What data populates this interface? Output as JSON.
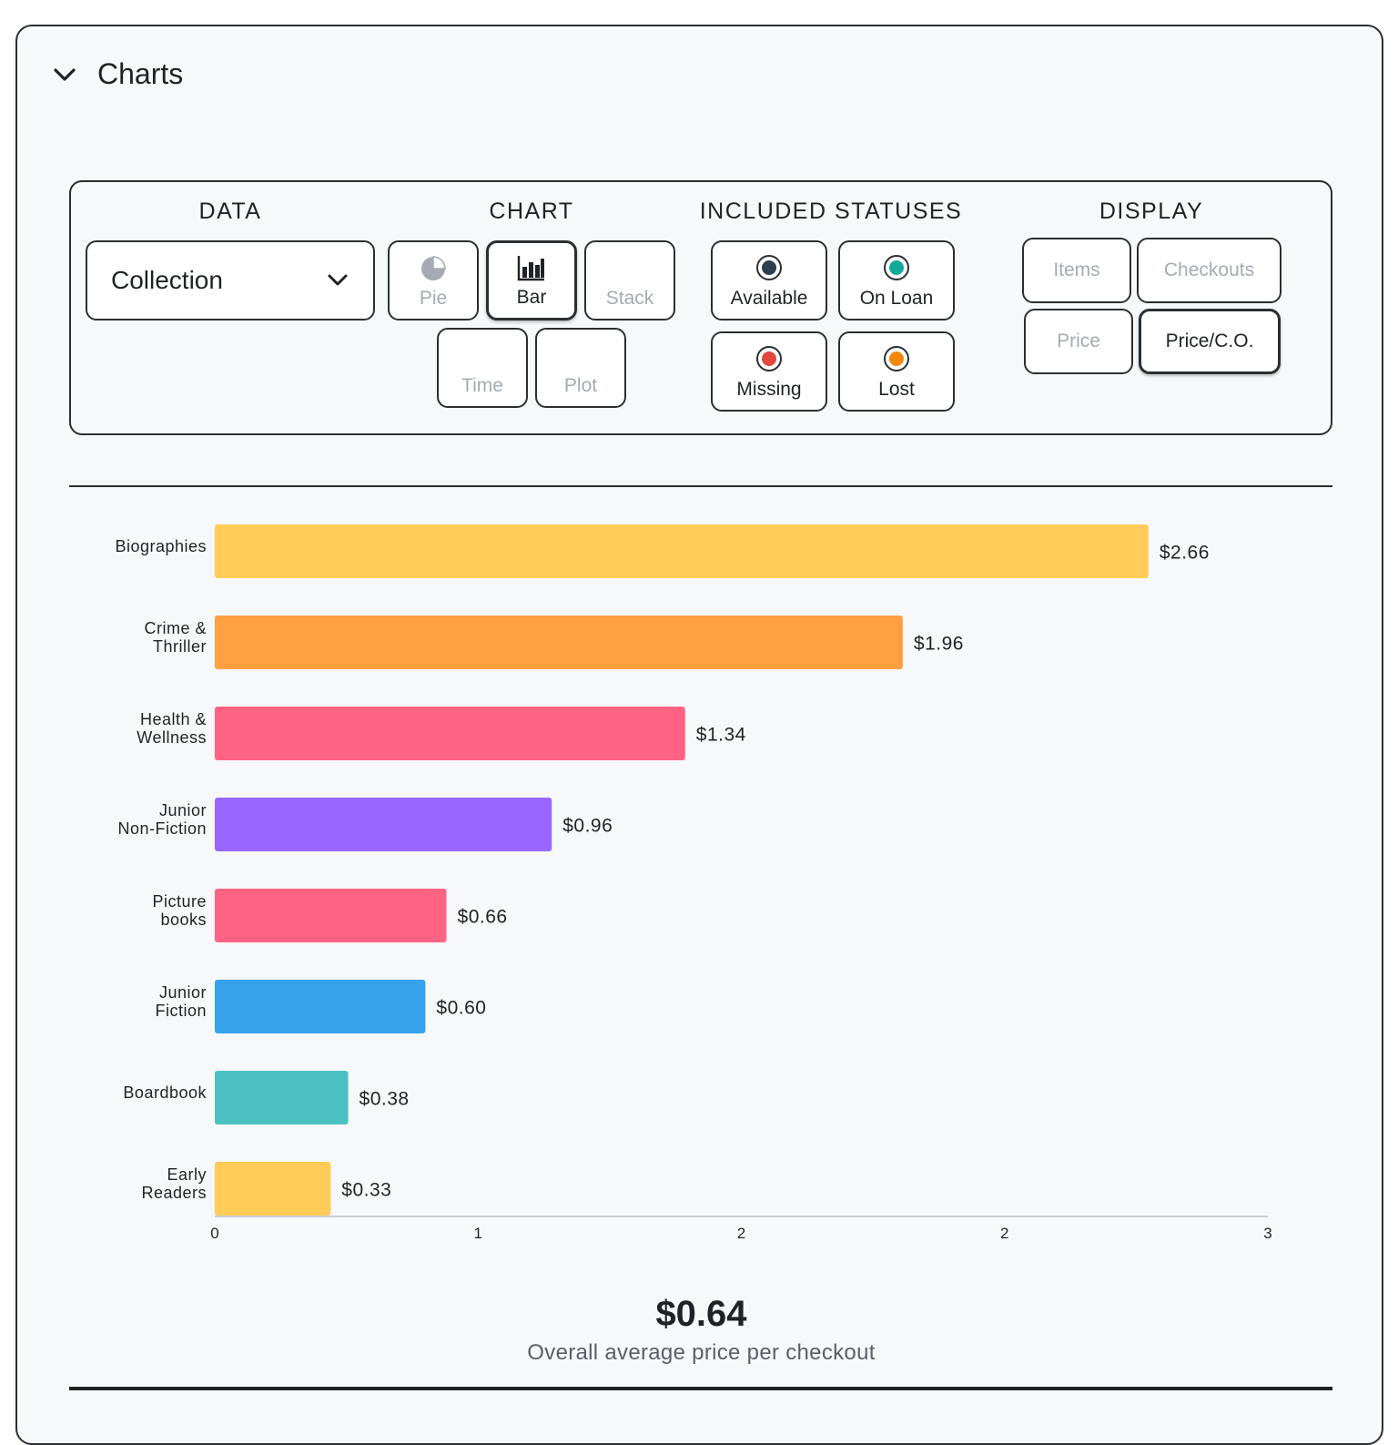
{
  "header": {
    "title": "Charts",
    "icon": "chevron-down-icon"
  },
  "controls": {
    "data": {
      "label": "DATA",
      "selected": "Collection"
    },
    "chart": {
      "label": "CHART",
      "options": [
        {
          "label": "Pie",
          "icon": "pie-chart-icon",
          "state": "disabled"
        },
        {
          "label": "Bar",
          "icon": "bar-chart-icon",
          "state": "selected"
        },
        {
          "label": "Stack",
          "icon": "",
          "state": "disabled"
        },
        {
          "label": "Time",
          "icon": "",
          "state": "disabled"
        },
        {
          "label": "Plot",
          "icon": "",
          "state": "disabled"
        }
      ]
    },
    "statuses": {
      "label": "INCLUDED STATUSES",
      "options": [
        {
          "label": "Available",
          "color": "#2d3e4e"
        },
        {
          "label": "On Loan",
          "color": "#10a99a"
        },
        {
          "label": "Missing",
          "color": "#e2483d"
        },
        {
          "label": "Lost",
          "color": "#f2870f"
        }
      ]
    },
    "display": {
      "label": "DISPLAY",
      "options": [
        {
          "label": "Items",
          "state": "disabled"
        },
        {
          "label": "Checkouts",
          "state": "disabled"
        },
        {
          "label": "Price",
          "state": "disabled"
        },
        {
          "label": "Price/C.O.",
          "state": "selected"
        }
      ]
    }
  },
  "chart_data": {
    "type": "bar",
    "orientation": "horizontal",
    "categories": [
      "Biographies",
      "Crime & Thriller",
      "Health & Wellness",
      "Junior Non-Fiction",
      "Picture books",
      "Junior Fiction",
      "Boardbook",
      "Early Readers"
    ],
    "category_lines": [
      [
        "Biographies"
      ],
      [
        "Crime &",
        "Thriller"
      ],
      [
        "Health &",
        "Wellness"
      ],
      [
        "Junior",
        "Non-Fiction"
      ],
      [
        "Picture",
        "books"
      ],
      [
        "Junior",
        "Fiction"
      ],
      [
        "Boardbook"
      ],
      [
        "Early",
        "Readers"
      ]
    ],
    "values": [
      2.66,
      1.96,
      1.34,
      0.96,
      0.66,
      0.6,
      0.38,
      0.33
    ],
    "value_labels": [
      "$2.66",
      "$1.96",
      "$1.34",
      "$0.96",
      "$0.66",
      "$0.60",
      "$0.38",
      "$0.33"
    ],
    "colors": [
      "#ffcd57",
      "#ff9f40",
      "#ff6384",
      "#9966ff",
      "#ff6384",
      "#36a2eb",
      "#4bc0c0",
      "#ffcd57"
    ],
    "xlim": [
      0,
      3
    ],
    "x_ticks": [
      0,
      0.75,
      1.5,
      2.25,
      3
    ],
    "x_tick_labels": [
      "0",
      "1",
      "2",
      "2",
      "3"
    ],
    "grid": false,
    "legend": "none"
  },
  "summary": {
    "value": "$0.64",
    "label": "Overall average price per checkout"
  }
}
